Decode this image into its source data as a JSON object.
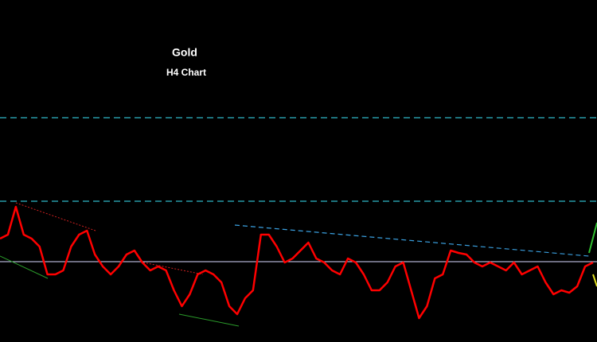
{
  "chart_data": {
    "type": "line",
    "title": "Gold",
    "subtitle": "H4 Chart",
    "color": "#ff0000",
    "ylim": [
      0,
      430
    ],
    "values": [
      130,
      135,
      170,
      135,
      130,
      120,
      85,
      85,
      90,
      120,
      135,
      140,
      110,
      95,
      85,
      95,
      110,
      115,
      100,
      90,
      95,
      90,
      65,
      45,
      60,
      85,
      90,
      85,
      75,
      45,
      35,
      55,
      65,
      135,
      135,
      120,
      100,
      105,
      115,
      125,
      105,
      100,
      90,
      85,
      105,
      100,
      85,
      65,
      65,
      75,
      95,
      100,
      65,
      30,
      45,
      80,
      85,
      115,
      112,
      110,
      100,
      95,
      100,
      95,
      90,
      100,
      85,
      90,
      95,
      75,
      60,
      65,
      62,
      70,
      95,
      100
    ]
  }
}
